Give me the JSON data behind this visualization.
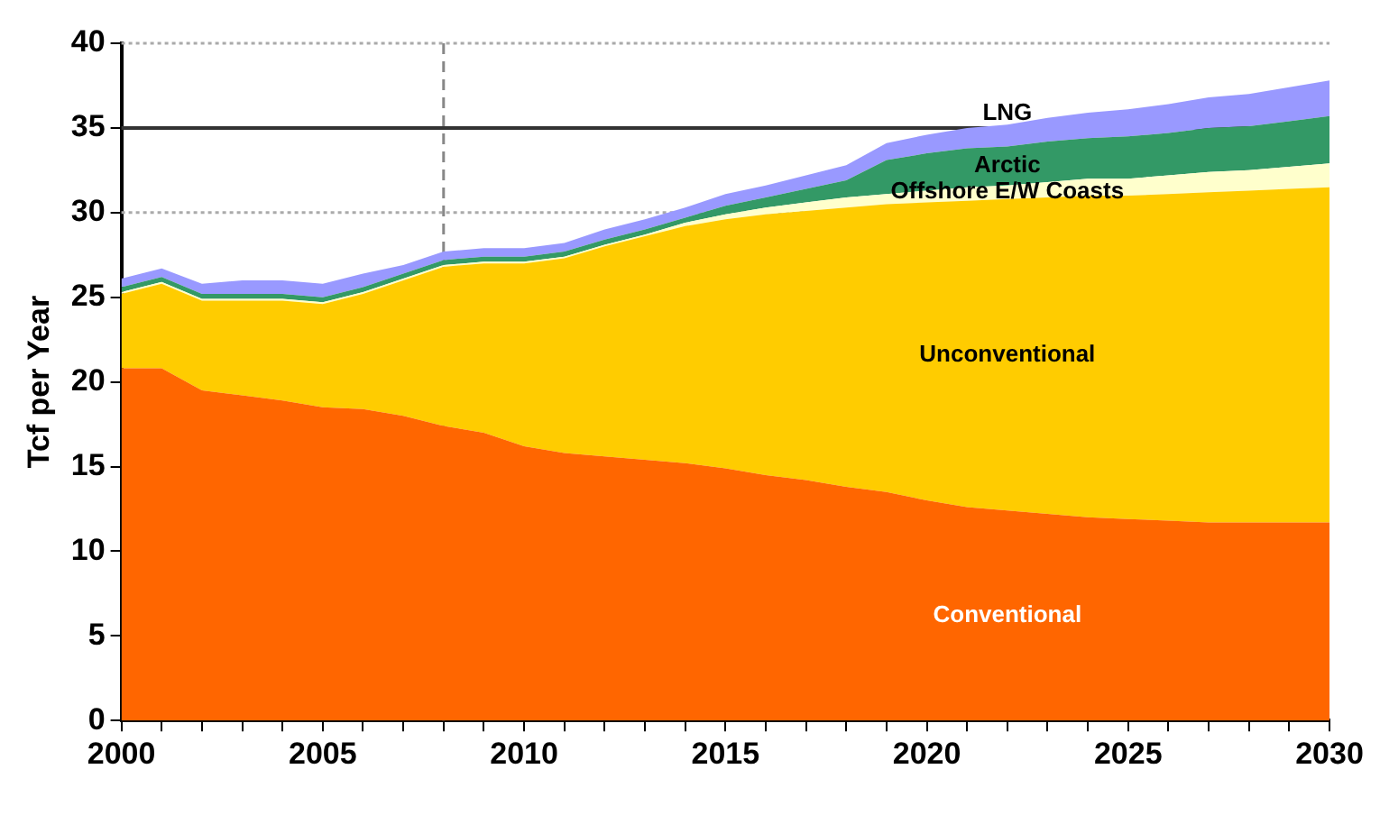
{
  "chart_data": {
    "type": "area",
    "stacked": true,
    "ylabel": "Tcf per Year",
    "x": [
      2000,
      2001,
      2002,
      2003,
      2004,
      2005,
      2006,
      2007,
      2008,
      2009,
      2010,
      2011,
      2012,
      2013,
      2014,
      2015,
      2016,
      2017,
      2018,
      2019,
      2020,
      2021,
      2022,
      2023,
      2024,
      2025,
      2026,
      2027,
      2028,
      2029,
      2030
    ],
    "series": [
      {
        "name": "Conventional",
        "color": "#ff6600",
        "values": [
          20.8,
          20.8,
          19.5,
          19.2,
          18.9,
          18.5,
          18.4,
          18.0,
          17.4,
          17.0,
          16.2,
          15.8,
          15.6,
          15.4,
          15.2,
          14.9,
          14.5,
          14.2,
          13.8,
          13.5,
          13.0,
          12.6,
          12.4,
          12.2,
          12.0,
          11.9,
          11.8,
          11.7,
          11.7,
          11.7,
          11.7
        ]
      },
      {
        "name": "Unconventional",
        "color": "#ffcc00",
        "values": [
          4.4,
          5.0,
          5.3,
          5.6,
          5.9,
          6.1,
          6.8,
          8.0,
          9.4,
          10.0,
          10.8,
          11.5,
          12.4,
          13.2,
          14.0,
          14.7,
          15.4,
          15.9,
          16.5,
          17.0,
          17.6,
          18.1,
          18.4,
          18.7,
          19.0,
          19.1,
          19.3,
          19.5,
          19.6,
          19.7,
          19.8
        ]
      },
      {
        "name": "Offshore E/W Coasts",
        "color": "#ffffcc",
        "values": [
          0.1,
          0.1,
          0.1,
          0.1,
          0.1,
          0.1,
          0.1,
          0.1,
          0.1,
          0.1,
          0.1,
          0.1,
          0.1,
          0.1,
          0.2,
          0.3,
          0.4,
          0.5,
          0.6,
          0.6,
          0.7,
          0.8,
          0.8,
          0.9,
          1.0,
          1.0,
          1.1,
          1.2,
          1.2,
          1.3,
          1.4
        ]
      },
      {
        "name": "Arctic",
        "color": "#339966",
        "values": [
          0.3,
          0.3,
          0.3,
          0.3,
          0.3,
          0.3,
          0.3,
          0.3,
          0.3,
          0.3,
          0.3,
          0.3,
          0.3,
          0.3,
          0.3,
          0.5,
          0.6,
          0.8,
          1.0,
          2.0,
          2.2,
          2.3,
          2.3,
          2.4,
          2.4,
          2.5,
          2.5,
          2.6,
          2.6,
          2.7,
          2.8
        ]
      },
      {
        "name": "LNG",
        "color": "#9999ff",
        "values": [
          0.5,
          0.5,
          0.6,
          0.8,
          0.8,
          0.8,
          0.8,
          0.5,
          0.5,
          0.5,
          0.5,
          0.5,
          0.6,
          0.6,
          0.6,
          0.7,
          0.7,
          0.8,
          0.9,
          1.0,
          1.1,
          1.2,
          1.3,
          1.4,
          1.5,
          1.6,
          1.7,
          1.8,
          1.9,
          2.0,
          2.1
        ]
      }
    ],
    "xlim": [
      2000,
      2030
    ],
    "xticks": [
      2000,
      {
        "value": 2001,
        "label": null
      },
      {
        "value": 2002,
        "label": null
      },
      {
        "value": 2003,
        "label": null
      },
      {
        "value": 2004,
        "label": null
      },
      2005,
      {
        "value": 2006,
        "label": null
      },
      {
        "value": 2007,
        "label": null
      },
      {
        "value": 2008,
        "label": null
      },
      {
        "value": 2009,
        "label": null
      },
      2010,
      {
        "value": 2011,
        "label": null
      },
      {
        "value": 2012,
        "label": null
      },
      {
        "value": 2013,
        "label": null
      },
      {
        "value": 2014,
        "label": null
      },
      2015,
      {
        "value": 2016,
        "label": null
      },
      {
        "value": 2017,
        "label": null
      },
      {
        "value": 2018,
        "label": null
      },
      {
        "value": 2019,
        "label": null
      },
      2020,
      {
        "value": 2021,
        "label": null
      },
      {
        "value": 2022,
        "label": null
      },
      {
        "value": 2023,
        "label": null
      },
      {
        "value": 2024,
        "label": null
      },
      2025,
      {
        "value": 2026,
        "label": null
      },
      {
        "value": 2027,
        "label": null
      },
      {
        "value": 2028,
        "label": null
      },
      {
        "value": 2029,
        "label": null
      },
      2030
    ],
    "ylim": [
      0,
      40
    ],
    "yticks": [
      0,
      5,
      10,
      15,
      20,
      25,
      30,
      35,
      40
    ],
    "ref_lines": [
      {
        "axis": "y",
        "value": 35,
        "color": "#333333",
        "line_style": "solid"
      },
      {
        "axis": "y",
        "value": 30,
        "color": "#aaaaaa",
        "line_style": "dotted"
      },
      {
        "axis": "y",
        "value": 40,
        "color": "#aaaaaa",
        "line_style": "dotted"
      },
      {
        "axis": "x",
        "value": 2008,
        "color": "#888888",
        "line_style": "dashed"
      }
    ],
    "grid": false,
    "legend": false
  }
}
